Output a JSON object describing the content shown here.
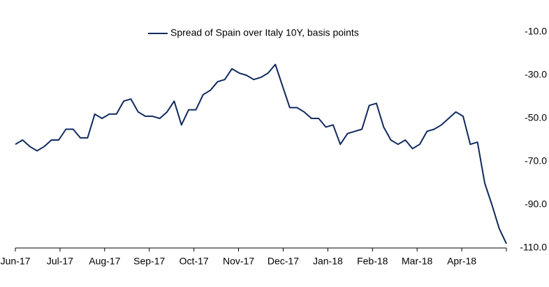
{
  "chart_data": {
    "type": "line",
    "xtick_labels": [
      "Jun-17",
      "Jul-17",
      "Aug-17",
      "Sep-17",
      "Oct-17",
      "Nov-17",
      "Dec-17",
      "Jan-18",
      "Feb-18",
      "Mar-18",
      "Apr-18"
    ],
    "series": [
      {
        "name": "Spread of Spain over Italy 10Y, basis points",
        "color": "#0f2a5e",
        "values": [
          -62,
          -60,
          -63,
          -65,
          -63,
          -60,
          -60,
          -55,
          -55,
          -59,
          -59,
          -48,
          -50,
          -48,
          -48,
          -42,
          -41,
          -47,
          -49,
          -49,
          -50,
          -47,
          -42,
          -53,
          -46,
          -46,
          -39,
          -37,
          -33,
          -32,
          -27,
          -29,
          -30,
          -32,
          -31,
          -29,
          -25,
          -35,
          -45,
          -45,
          -47,
          -50,
          -50,
          -54,
          -53,
          -62,
          -57,
          -56,
          -55,
          -44,
          -43,
          -54,
          -60,
          -62,
          -60,
          -64,
          -62,
          -56,
          -55,
          -53,
          -50,
          -47,
          -49,
          -62,
          -61,
          -80,
          -90,
          -101,
          -108
        ]
      }
    ],
    "ylim": [
      -110,
      -10
    ],
    "yticks": [
      {
        "value": -10,
        "label": "-10.0"
      },
      {
        "value": -30,
        "label": "-30.0"
      },
      {
        "value": -50,
        "label": "-50.0"
      },
      {
        "value": -70,
        "label": "-70.0"
      },
      {
        "value": -90,
        "label": "-90.0"
      },
      {
        "value": -110,
        "label": "-110.0"
      }
    ]
  }
}
